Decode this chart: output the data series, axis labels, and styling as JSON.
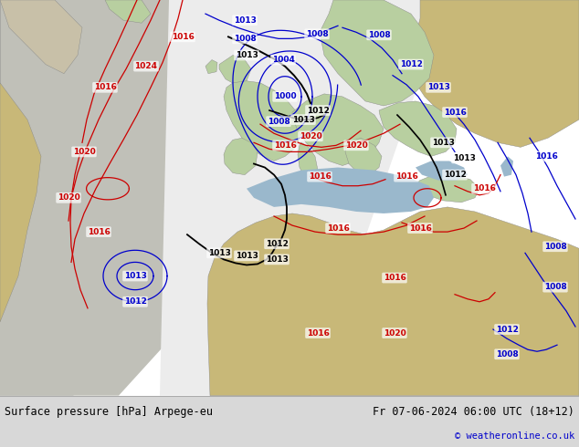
{
  "title_left": "Surface pressure [hPa] Arpege-eu",
  "title_right": "Fr 07-06-2024 06:00 UTC (18+12)",
  "copyright": "© weatheronline.co.uk",
  "figsize": [
    6.34,
    4.9
  ],
  "dpi": 100,
  "bg_color": "#ffffff",
  "ocean_color": "#9ab8cc",
  "land_green_color": "#b8cfa0",
  "land_tan_color": "#c8b878",
  "land_grey_color": "#a8a898",
  "polar_white": "#e8e8e0",
  "footer_bg": "#d8d8d8",
  "contour_blue": "#0000cc",
  "contour_red": "#cc0000",
  "contour_black": "#000000",
  "font_size_labels": 6.5,
  "font_size_footer": 8.5
}
